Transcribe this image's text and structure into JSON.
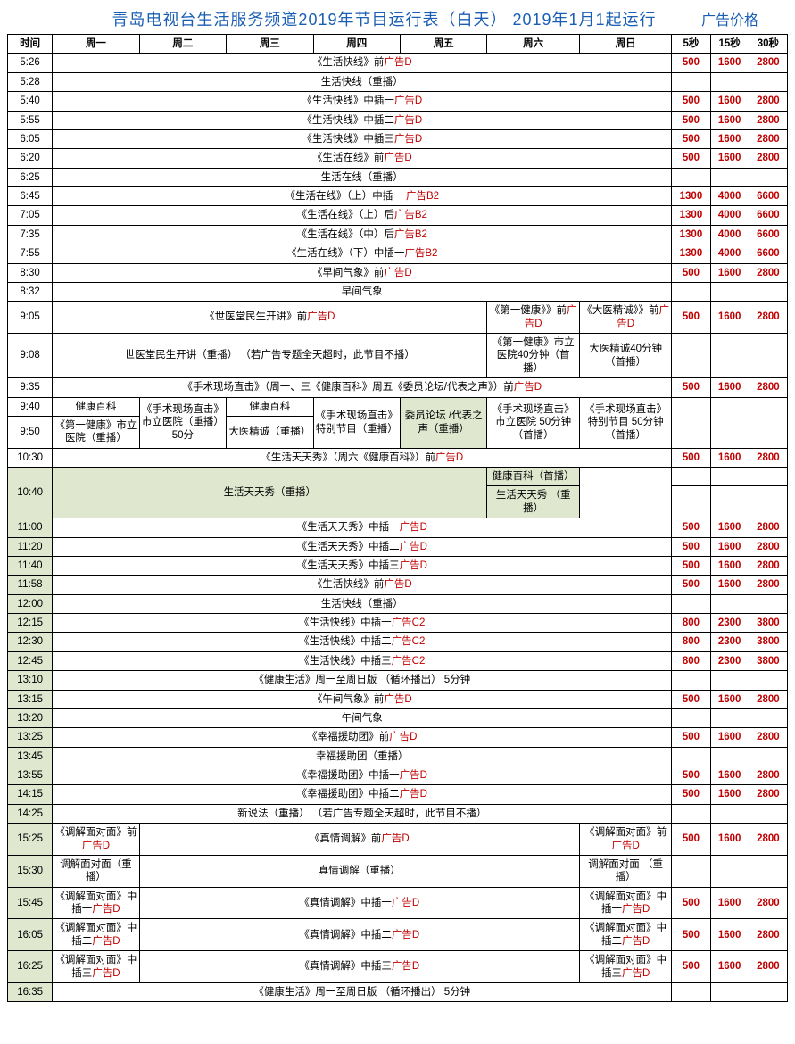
{
  "title": "青岛电视台生活服务频道2019年节目运行表（白天）  2019年1月1起运行",
  "price_label": "广告价格",
  "head": {
    "time": "时间",
    "d1": "周一",
    "d2": "周二",
    "d3": "周三",
    "d4": "周四",
    "d5": "周五",
    "d6": "周六",
    "d7": "周日",
    "p5": "5秒",
    "p15": "15秒",
    "p30": "30秒"
  },
  "t": {
    "r526": "5:26",
    "r528": "5:28",
    "r540": "5:40",
    "r555": "5:55",
    "r605": "6:05",
    "r620": "6:20",
    "r625": "6:25",
    "r645": "6:45",
    "r705": "7:05",
    "r735": "7:35",
    "r755": "7:55",
    "r830": "8:30",
    "r832": "8:32",
    "r905": "9:05",
    "r908": "9:08",
    "r935": "9:35",
    "r940": "9:40",
    "r950": "9:50",
    "r1030": "10:30",
    "r1040": "10:40",
    "r1100": "11:00",
    "r1120": "11:20",
    "r1140": "11:40",
    "r1158": "11:58",
    "r1200": "12:00",
    "r1215": "12:15",
    "r1230": "12:30",
    "r1245": "12:45",
    "r1310": "13:10",
    "r1315": "13:15",
    "r1320": "13:20",
    "r1325": "13:25",
    "r1345": "13:45",
    "r1355": "13:55",
    "r1415": "14:15",
    "r1425": "14:25",
    "r1525": "15:25",
    "r1530": "15:30",
    "r1545": "15:45",
    "r1605": "16:05",
    "r1625": "16:25",
    "r1635": "16:35"
  },
  "c": {
    "r526": {
      "a": "《生活快线》前",
      "b": "广告D"
    },
    "r528": {
      "a": "生活快线（重播）"
    },
    "r540": {
      "a": "《生活快线》中插一",
      "b": "广告D"
    },
    "r555": {
      "a": "《生活快线》中插二",
      "b": "广告D"
    },
    "r605": {
      "a": "《生活快线》中插三",
      "b": "广告D"
    },
    "r620": {
      "a": "《生活在线》前",
      "b": "广告D"
    },
    "r625": {
      "a": "生活在线（重播）"
    },
    "r645": {
      "a": "《生活在线》（上）中插一 ",
      "b": "广告B2"
    },
    "r705": {
      "a": "《生活在线》（上）后",
      "b": "广告B2"
    },
    "r735": {
      "a": "《生活在线》（中）后",
      "b": "广告B2"
    },
    "r755": {
      "a": "《生活在线》（下）中插一",
      "b": "广告B2"
    },
    "r830": {
      "a": "《早间气象》前",
      "b": "广告D"
    },
    "r832": {
      "a": "早间气象"
    },
    "r905_main": {
      "a": "《世医堂民生开讲》前",
      "b": "广告D"
    },
    "r905_sat": {
      "a": "《第一健康》》前",
      "b": "广告D"
    },
    "r905_sun": {
      "a": "《大医精诚》》前",
      "b": "广告D"
    },
    "r908_main": {
      "a": "世医堂民生开讲（重播） （若广告专题全天超时，此节目不播）"
    },
    "r908_sat": {
      "a": "《第一健康》市立医院40分钟（首播）"
    },
    "r908_sun": {
      "a": "大医精诚40分钟（首播）"
    },
    "r935": {
      "a": "《手术现场直击》（周一、三《健康百科》周五《委员论坛/代表之声》）前",
      "b": "广告D"
    },
    "r940_d1": {
      "a": "健康百科"
    },
    "r940_d2": {
      "a": "《手术现场直击》市立医院（重播）50分"
    },
    "r940_d3": {
      "a": "健康百科"
    },
    "r940_d4": {
      "a": "《手术现场直击》特别节目（重播）"
    },
    "r940_d5": {
      "a": "委员论坛  /代表之声（重播）"
    },
    "r940_d6": {
      "a": "《手术现场直击》市立医院 50分钟 （首播）"
    },
    "r940_d7": {
      "a": "《手术现场直击》特别节目 50分钟（首播）"
    },
    "r950_d1": {
      "a": "《第一健康》市立医院（重播）"
    },
    "r950_d3": {
      "a": "大医精诚（重播）"
    },
    "r1030": {
      "a": "《生活天天秀》（周六《健康百科》）前",
      "b": "广告D"
    },
    "r1040_main": {
      "a": "生活天天秀（重播）"
    },
    "r1040_sat": {
      "a": "健康百科（首播）"
    },
    "r1040b_sat": {
      "a": "生活天天秀    （重播）"
    },
    "r1100": {
      "a": "《生活天天秀》中插一",
      "b": "广告D"
    },
    "r1120": {
      "a": "《生活天天秀》中插二",
      "b": "广告D"
    },
    "r1140": {
      "a": "《生活天天秀》中插三",
      "b": "广告D"
    },
    "r1158": {
      "a": "《生活快线》前",
      "b": "广告D"
    },
    "r1200": {
      "a": "生活快线（重播）"
    },
    "r1215": {
      "a": "《生活快线》中插一",
      "b": "广告C2"
    },
    "r1230": {
      "a": "《生活快线》中插二",
      "b": "广告C2"
    },
    "r1245": {
      "a": "《生活快线》中插三",
      "b": "广告C2"
    },
    "r1310": {
      "a": "《健康生活》周一至周日版  （循环播出） 5分钟"
    },
    "r1315": {
      "a": "《午间气象》前",
      "b": "广告D"
    },
    "r1320": {
      "a": "午间气象"
    },
    "r1325": {
      "a": "《幸福援助团》前",
      "b": "广告D"
    },
    "r1345": {
      "a": "幸福援助团（重播）"
    },
    "r1355": {
      "a": "《幸福援助团》中插一",
      "b": "广告D"
    },
    "r1415": {
      "a": "《幸福援助团》中插二",
      "b": "广告D"
    },
    "r1425": {
      "a": "新说法（重播） （若广告专题全天超时，此节目不播）"
    },
    "r1525_d1": {
      "a": "《调解面对面》前 ",
      "b": "广告D"
    },
    "r1525_mid": {
      "a": "《真情调解》前",
      "b": "广告D"
    },
    "r1525_d7": {
      "a": "《调解面对面》前 ",
      "b": "广告D"
    },
    "r1530_d1": {
      "a": "调解面对面（重播）"
    },
    "r1530_mid": {
      "a": "真情调解（重播）"
    },
    "r1530_d7": {
      "a": "调解面对面   （重播）"
    },
    "r1545_d1": {
      "a": "《调解面对面》中插一",
      "b": "广告D"
    },
    "r1545_mid": {
      "a": "《真情调解》中插一",
      "b": "广告D"
    },
    "r1545_d7": {
      "a": "《调解面对面》中插一",
      "b": "广告D"
    },
    "r1605_d1": {
      "a": "《调解面对面》中插二",
      "b": "广告D"
    },
    "r1605_mid": {
      "a": "《真情调解》中插二",
      "b": "广告D"
    },
    "r1605_d7": {
      "a": "《调解面对面》中插二",
      "b": "广告D"
    },
    "r1625_d1": {
      "a": "《调解面对面》中插三",
      "b": "广告D"
    },
    "r1625_mid": {
      "a": "《真情调解》中插三",
      "b": "广告D"
    },
    "r1625_d7": {
      "a": "《调解面对面》中插三",
      "b": "广告D"
    },
    "r1635": {
      "a": "《健康生活》周一至周日版  （循环播出） 5分钟"
    }
  },
  "p": {
    "d": {
      "p5": "500",
      "p15": "1600",
      "p30": "2800"
    },
    "b2": {
      "p5": "1300",
      "p15": "4000",
      "p30": "6600"
    },
    "c2": {
      "p5": "800",
      "p15": "2300",
      "p30": "3800"
    }
  }
}
